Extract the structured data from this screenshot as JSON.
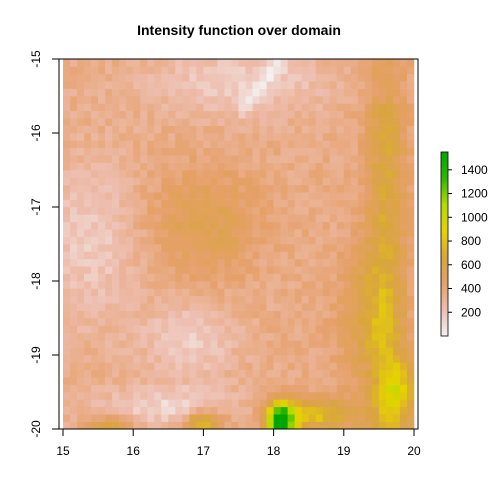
{
  "chart_data": {
    "type": "heatmap",
    "title": "Intensity function over domain",
    "xlabel": "",
    "ylabel": "",
    "xlim": [
      15,
      20
    ],
    "ylim": [
      -20,
      -15
    ],
    "x_ticks": [
      "15",
      "16",
      "17",
      "18",
      "19",
      "20"
    ],
    "y_ticks": [
      "-20",
      "-19",
      "-18",
      "-17",
      "-16",
      "-15"
    ],
    "colorbar": {
      "range": [
        0,
        1550
      ],
      "ticks": [
        "200",
        "400",
        "600",
        "800",
        "1000",
        "1200",
        "1400"
      ],
      "palette": [
        "#F2F2F2",
        "#EEBEB0",
        "#E6A06A",
        "#D9A53E",
        "#E6D200",
        "#B4DC00",
        "#2EB800",
        "#00A600"
      ]
    },
    "grid_resolution": [
      50,
      50
    ],
    "intensity_regions_note": "",
    "features": {
      "background_level": 350,
      "high_east_ridge_level": 700,
      "southern_peak_level": 1500
    }
  }
}
